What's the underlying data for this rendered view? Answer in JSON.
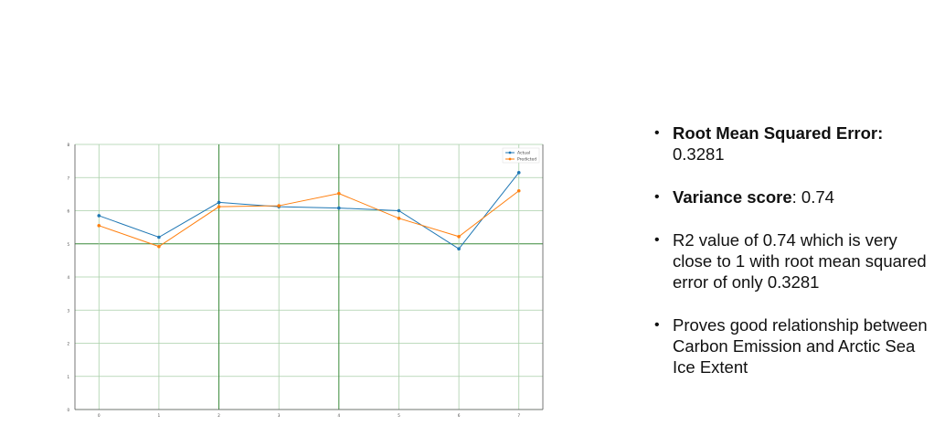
{
  "chart_data": {
    "type": "line",
    "title": "",
    "xlabel": "",
    "ylabel": "",
    "x": [
      0,
      1,
      2,
      3,
      4,
      5,
      6,
      7
    ],
    "xlim": [
      -0.4,
      7.4
    ],
    "ylim": [
      0,
      8
    ],
    "y_ticks": [
      0,
      1,
      2,
      3,
      4,
      5,
      6,
      7,
      8
    ],
    "grid": true,
    "legend_position": "top-right",
    "series": [
      {
        "name": "Actual",
        "color": "#1f77b4",
        "values": [
          5.85,
          5.2,
          6.25,
          6.12,
          6.08,
          6.0,
          4.85,
          7.15
        ]
      },
      {
        "name": "Predicted",
        "color": "#ff7f0e",
        "values": [
          5.55,
          4.92,
          6.12,
          6.15,
          6.52,
          5.77,
          5.22,
          6.6
        ]
      }
    ]
  },
  "notes": {
    "items": [
      {
        "bold": "Root Mean Squared Error:",
        "rest": " 0.3281"
      },
      {
        "bold": "Variance score",
        "rest": ": 0.74"
      },
      {
        "bold": "",
        "rest": "R2 value of 0.74 which is very close to 1 with root mean squared error of only 0.3281"
      },
      {
        "bold": "",
        "rest": "Proves good relationship between Carbon Emission and Arctic Sea Ice Extent"
      }
    ]
  }
}
